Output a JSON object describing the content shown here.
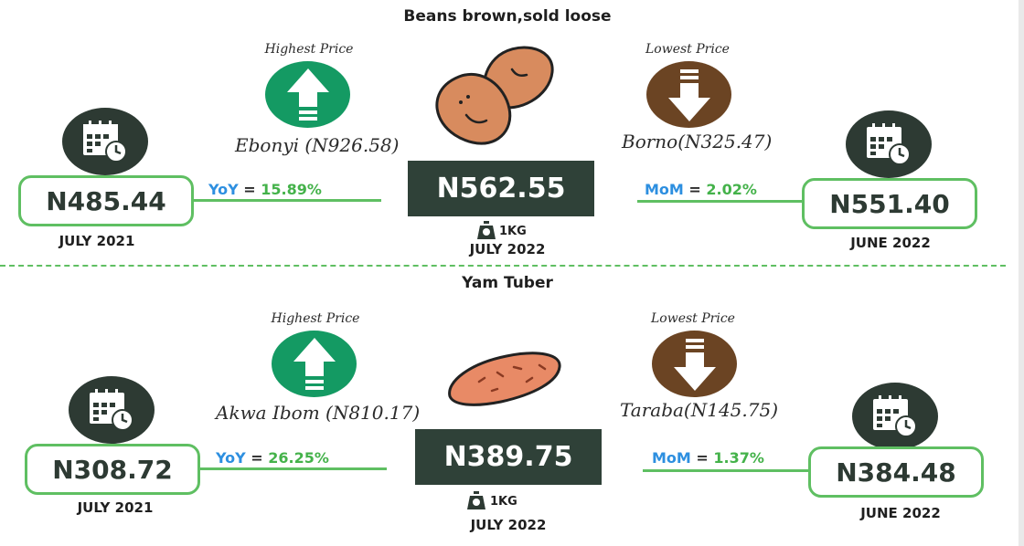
{
  "sections": [
    {
      "title": "Beans brown,sold loose",
      "highest_label": "Highest Price",
      "highest_region": "Ebonyi (N926.58)",
      "lowest_label": "Lowest Price",
      "lowest_region": "Borno(N325.47)",
      "current_price": "N562.55",
      "current_date": "JULY 2022",
      "unit": "1KG",
      "yoy_label": "YoY",
      "yoy_value": "15.89%",
      "prev_year_price": "N485.44",
      "prev_year_date": "JULY 2021",
      "mom_label": "MoM",
      "mom_value": "2.02%",
      "prev_month_price": "N551.40",
      "prev_month_date": "JUNE 2022",
      "icon": "beans-icon"
    },
    {
      "title": "Yam Tuber",
      "highest_label": "Highest Price",
      "highest_region": "Akwa Ibom (N810.17)",
      "lowest_label": "Lowest Price",
      "lowest_region": "Taraba(N145.75)",
      "current_price": "N389.75",
      "current_date": "JULY 2022",
      "unit": "1KG",
      "yoy_label": "YoY",
      "yoy_value": "26.25%",
      "prev_year_price": "N308.72",
      "prev_year_date": "JULY 2021",
      "mom_label": "MoM",
      "mom_value": "1.37%",
      "prev_month_price": "N384.48",
      "prev_month_date": "JUNE 2022",
      "icon": "yam-icon"
    }
  ],
  "colors": {
    "green_circle": "#149a63",
    "brown_circle": "#6b4423",
    "dark_circle": "#2d3a33",
    "box_border": "#5fbf62",
    "main_price_bg": "#2f4138",
    "change_label": "#2d8fe0",
    "change_value": "#44b24a"
  }
}
